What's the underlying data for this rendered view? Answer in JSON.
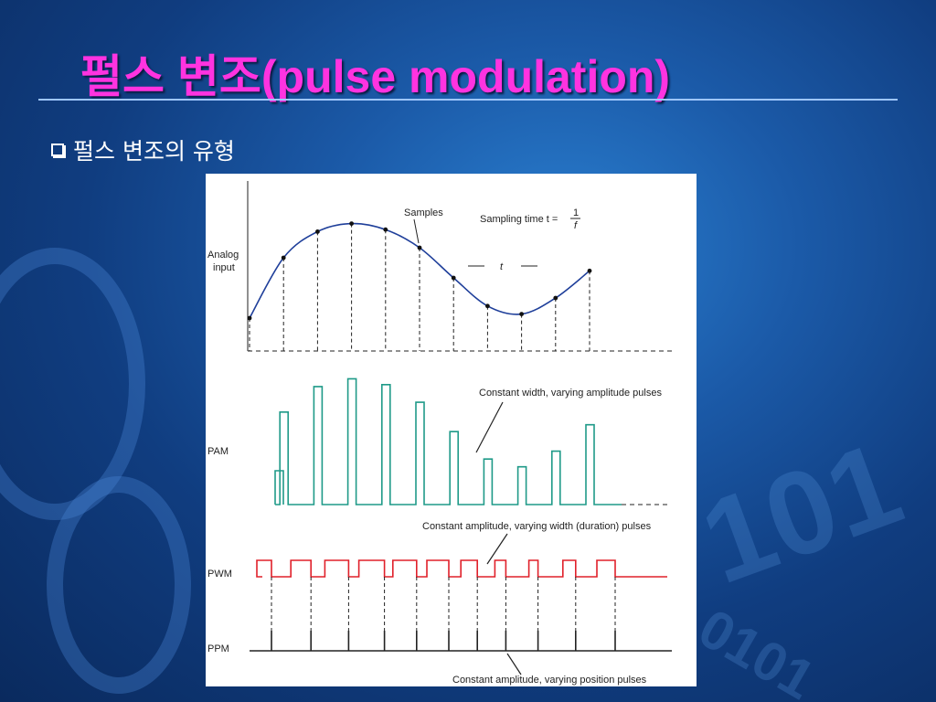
{
  "slide": {
    "title": "펄스 변조(pulse modulation)",
    "bullet": "펄스 변조의 유형"
  },
  "figure": {
    "labels": {
      "analog_input_line1": "Analog",
      "analog_input_line2": "input",
      "samples": "Samples",
      "sampling_time": "Sampling time t = ",
      "sampling_fraction_num": "1",
      "sampling_fraction_den": "f",
      "interval": "t",
      "pam": "PAM",
      "pwm": "PWM",
      "ppm": "PPM",
      "pam_note": "Constant width, varying amplitude pulses",
      "pwm_note": "Constant amplitude, varying width (duration) pulses",
      "ppm_note": "Constant amplitude, varying position pulses"
    },
    "samples": [
      0.0,
      0.6,
      0.86,
      0.94,
      0.88,
      0.7,
      0.4,
      0.12,
      0.04,
      0.2,
      0.47
    ],
    "pam_levels": [
      0.0,
      0.6,
      0.86,
      0.94,
      0.88,
      0.7,
      0.4,
      0.12,
      0.04,
      0.2,
      0.47
    ],
    "colors": {
      "curve": "#1f3f9a",
      "pam": "#1f9a88",
      "pwm": "#e0202a",
      "ppm": "#222222",
      "title": "#ff33e0"
    }
  }
}
